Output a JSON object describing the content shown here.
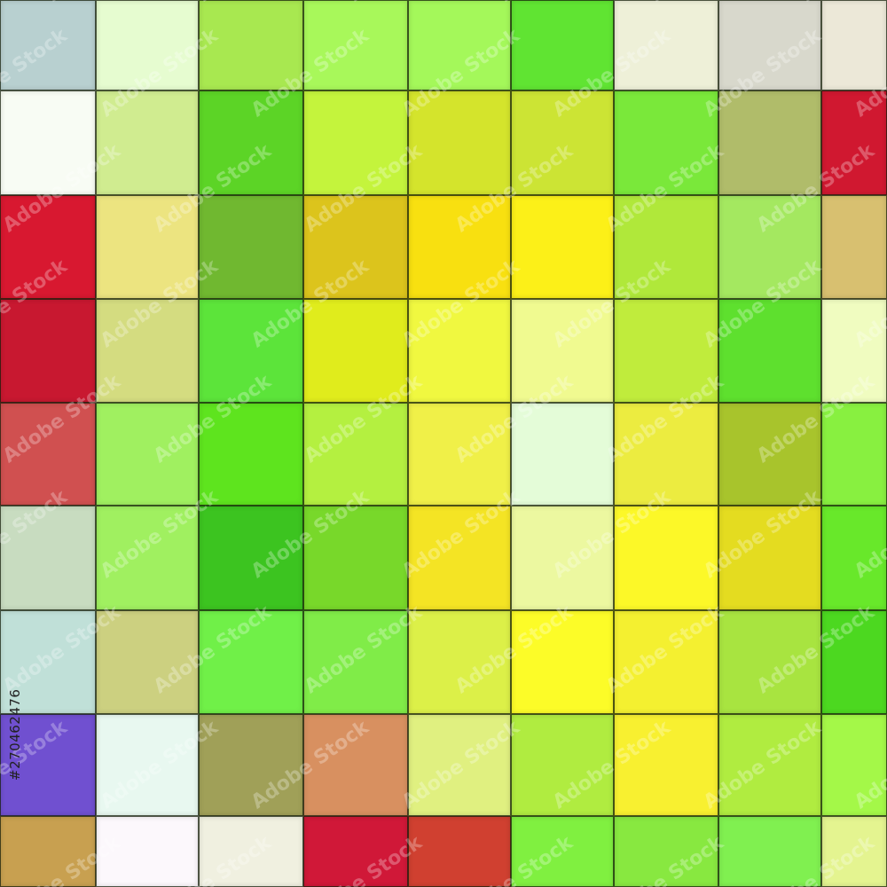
{
  "image": {
    "subject": "mosaic of colored square tiles",
    "watermark": "Adobe Stock",
    "stock_id": "#270462476",
    "tile_colors": [
      [
        "#b8d0d0",
        "#e6fcd0",
        "#a8e850",
        "#a8f85a",
        "#a4f85a",
        "#60e432",
        "#eef0d8",
        "#d8d8cc",
        "#ece8d8"
      ],
      [
        "#f8fcf4",
        "#d0ec90",
        "#5cd426",
        "#c4f43c",
        "#d4e42c",
        "#cce434",
        "#7ae83a",
        "#b0bc6a",
        "#d01830"
      ],
      [
        "#d81830",
        "#ece480",
        "#70b830",
        "#dcc41c",
        "#f8e010",
        "#fcf018",
        "#b0e83a",
        "#a4e860",
        "#d8c070"
      ],
      [
        "#c81830",
        "#d4dc80",
        "#5ce43a",
        "#e0ec1c",
        "#f0f840",
        "#f0fa90",
        "#c0ec3c",
        "#5ee02e",
        "#f0fcc0"
      ],
      [
        "#d05050",
        "#a0f060",
        "#5ee41e",
        "#b4f040",
        "#f0f048",
        "#e4fcd8",
        "#ecec40",
        "#a8c42c",
        "#88f040"
      ],
      [
        "#c8dcc0",
        "#a0f060",
        "#3cc420",
        "#78d82a",
        "#f4e424",
        "#ecf8a0",
        "#fcf828",
        "#e4dc20",
        "#68e82a"
      ],
      [
        "#c0e0d8",
        "#ccd080",
        "#70f048",
        "#80ec48",
        "#dcf048",
        "#fcfc28",
        "#f4f030",
        "#a8e440",
        "#4cd820"
      ],
      [
        "#7050d0",
        "#e8f8f0",
        "#a0a058",
        "#d89060",
        "#e0f080",
        "#b0ec40",
        "#f8f030",
        "#b0ec40",
        "#a4f848"
      ],
      [
        "#c8a050",
        "#fcf8fc",
        "#f0f0e0",
        "#d01838",
        "#d04030",
        "#80f040",
        "#88e840",
        "#80f050",
        "#e4f490"
      ]
    ]
  }
}
